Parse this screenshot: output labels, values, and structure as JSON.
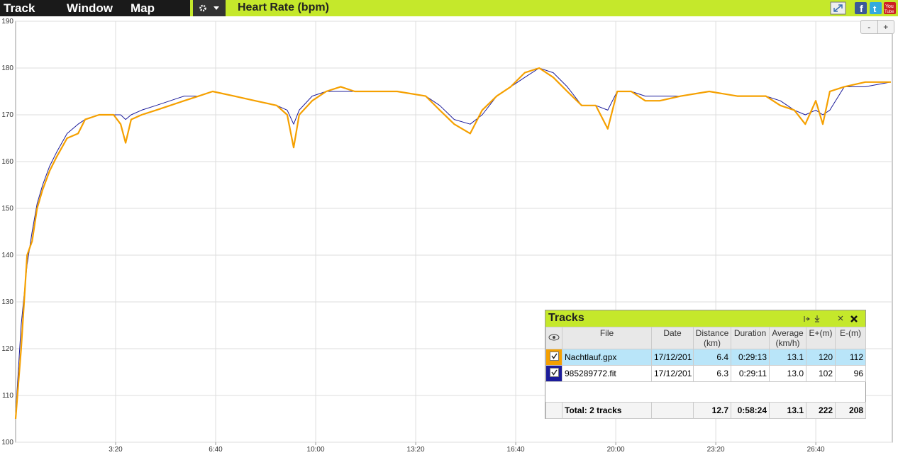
{
  "menu": [
    "Track",
    "Window",
    "Map"
  ],
  "zoom_buttons": [
    "-",
    "+"
  ],
  "chart_data": {
    "type": "line",
    "title": "Heart Rate (bpm)",
    "x": [
      0,
      11,
      23,
      33,
      43,
      54,
      68,
      82,
      103,
      125,
      139,
      167,
      196,
      210,
      220,
      231,
      252,
      281,
      309,
      337,
      366,
      394,
      437,
      479,
      522,
      543,
      556,
      567,
      593,
      621,
      650,
      678,
      720,
      763,
      820,
      848,
      877,
      909,
      933,
      962,
      990,
      1018,
      1047,
      1075,
      1103,
      1132,
      1160,
      1184,
      1203,
      1231,
      1259,
      1288,
      1330,
      1387,
      1443,
      1500,
      1529,
      1557,
      1579,
      1600,
      1614,
      1628,
      1657,
      1699,
      1750
    ],
    "series": [
      {
        "color": "#1c1c9a",
        "values": [
          106,
          125,
          138,
          145,
          151,
          155,
          159,
          162,
          166,
          168,
          169,
          170,
          170,
          170,
          169,
          170,
          171,
          172,
          173,
          174,
          174,
          175,
          174,
          173,
          172,
          171,
          168,
          171,
          174,
          175,
          175,
          175,
          175,
          175,
          174,
          172,
          169,
          168,
          170,
          174,
          176,
          178,
          180,
          179,
          176,
          172,
          172,
          171,
          175,
          175,
          174,
          174,
          174,
          175,
          174,
          174,
          173,
          171,
          170,
          171,
          170,
          171,
          176,
          176,
          177
        ]
      },
      {
        "color": "#f5a000",
        "values": [
          105,
          120,
          140,
          143,
          150,
          154,
          158,
          161,
          165,
          166,
          169,
          170,
          170,
          168,
          164,
          169,
          170,
          171,
          172,
          173,
          174,
          175,
          174,
          173,
          172,
          170,
          163,
          170,
          173,
          175,
          176,
          175,
          175,
          175,
          174,
          171,
          168,
          166,
          171,
          174,
          176,
          179,
          180,
          178,
          175,
          172,
          172,
          167,
          175,
          175,
          173,
          173,
          174,
          175,
          174,
          174,
          172,
          171,
          168,
          173,
          168,
          175,
          176,
          177,
          177
        ]
      }
    ],
    "xlim": [
      0,
      1753
    ],
    "xticks": [
      {
        "value": 200,
        "label": "3:20"
      },
      {
        "value": 400,
        "label": "6:40"
      },
      {
        "value": 600,
        "label": "10:00"
      },
      {
        "value": 800,
        "label": "13:20"
      },
      {
        "value": 1000,
        "label": "16:40"
      },
      {
        "value": 1200,
        "label": "20:00"
      },
      {
        "value": 1400,
        "label": "23:20"
      },
      {
        "value": 1600,
        "label": "26:40"
      }
    ],
    "ylim": [
      100,
      190
    ],
    "yticks": [
      100,
      110,
      120,
      130,
      140,
      150,
      160,
      170,
      180,
      190
    ],
    "grid": true
  },
  "tracks_panel": {
    "title": "Tracks",
    "columns": [
      "File",
      "Date",
      "Distance (km)",
      "Duration",
      "Average (km/h)",
      "E+(m)",
      "E-(m)"
    ],
    "rows": [
      {
        "series": 1,
        "cells": [
          "Nachtlauf.gpx",
          "17/12/201",
          "6.4",
          "0:29:13",
          "13.1",
          "120",
          "112"
        ]
      },
      {
        "series": 0,
        "cells": [
          "985289772.fit",
          "17/12/201",
          "6.3",
          "0:29:11",
          "13.0",
          "102",
          "96"
        ]
      }
    ],
    "total": {
      "label": "Total: 2 tracks",
      "cells": [
        "12.7",
        "0:58:24",
        "13.1",
        "222",
        "208"
      ]
    }
  }
}
